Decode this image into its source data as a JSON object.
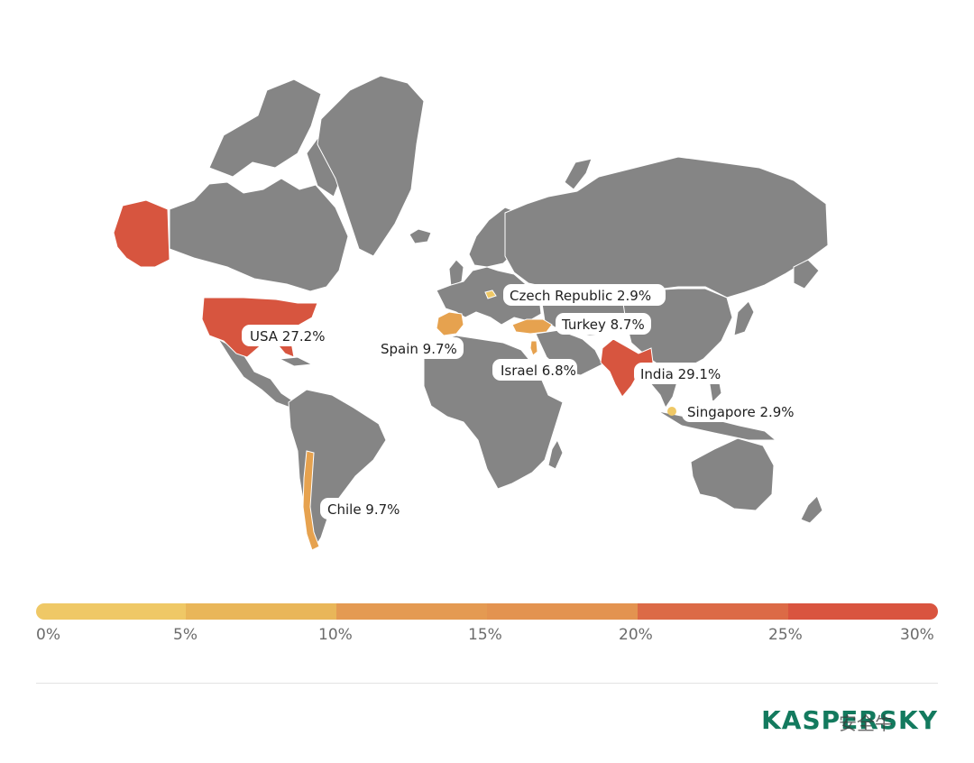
{
  "map": {
    "callouts": [
      {
        "country": "USA",
        "value": "27.2%",
        "text": "USA 27.2%"
      },
      {
        "country": "India",
        "value": "29.1%",
        "text": "India 29.1%"
      },
      {
        "country": "Spain",
        "value": "9.7%",
        "text": "Spain 9.7%"
      },
      {
        "country": "Chile",
        "value": "9.7%",
        "text": "Chile 9.7%"
      },
      {
        "country": "Turkey",
        "value": "8.7%",
        "text": "Turkey 8.7%"
      },
      {
        "country": "Israel",
        "value": "6.8%",
        "text": "Israel 6.8%"
      },
      {
        "country": "Czech Republic",
        "value": "2.9%",
        "text": "Czech Republic 2.9%"
      },
      {
        "country": "Singapore",
        "value": "2.9%",
        "text": "Singapore 2.9%"
      }
    ],
    "colors": {
      "land": "#858585",
      "high": "#d7553f",
      "mid": "#e6a24f",
      "low": "#efc866"
    }
  },
  "scale": {
    "ticks": [
      "0%",
      "5%",
      "10%",
      "15%",
      "20%",
      "25%",
      "30%"
    ],
    "colors": [
      "#efc866",
      "#e9b659",
      "#e49a52",
      "#e39350",
      "#dc6a46",
      "#d9543f"
    ]
  },
  "brand": {
    "logo": "KASPERSKY",
    "watermark": "安全牛"
  }
}
